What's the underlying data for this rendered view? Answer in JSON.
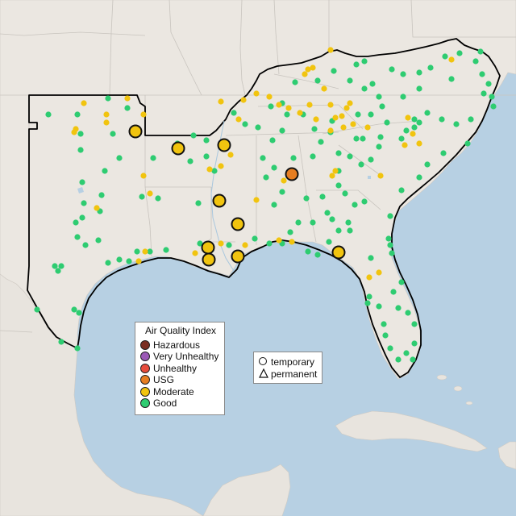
{
  "legend": {
    "title": "Air Quality Index",
    "items": [
      {
        "label": "Hazardous",
        "color": "#7a2e22"
      },
      {
        "label": "Very Unhealthy",
        "color": "#9b59b6"
      },
      {
        "label": "Unhealthy",
        "color": "#e74c3c"
      },
      {
        "label": "USG",
        "color": "#e67e22"
      },
      {
        "label": "Moderate",
        "color": "#f1c40f"
      },
      {
        "label": "Good",
        "color": "#2ecc71"
      }
    ]
  },
  "type_legend": {
    "temporary": "temporary",
    "permanent": "permanent"
  },
  "colors": {
    "water": "#b7d0e3",
    "land": "#ede8e2",
    "outside_land": "#e9e5e0",
    "state_border": "#bdbdbd",
    "region_outline": "#000000"
  },
  "map_features": {
    "large_monitor_icon": "circle-marker-outlined",
    "small_monitor_icon": "dot-marker",
    "large_marker_levels": [
      "Moderate",
      "Moderate",
      "Moderate",
      "USG",
      "Moderate",
      "Moderate",
      "Moderate",
      "Moderate",
      "Moderate",
      "Moderate"
    ]
  }
}
